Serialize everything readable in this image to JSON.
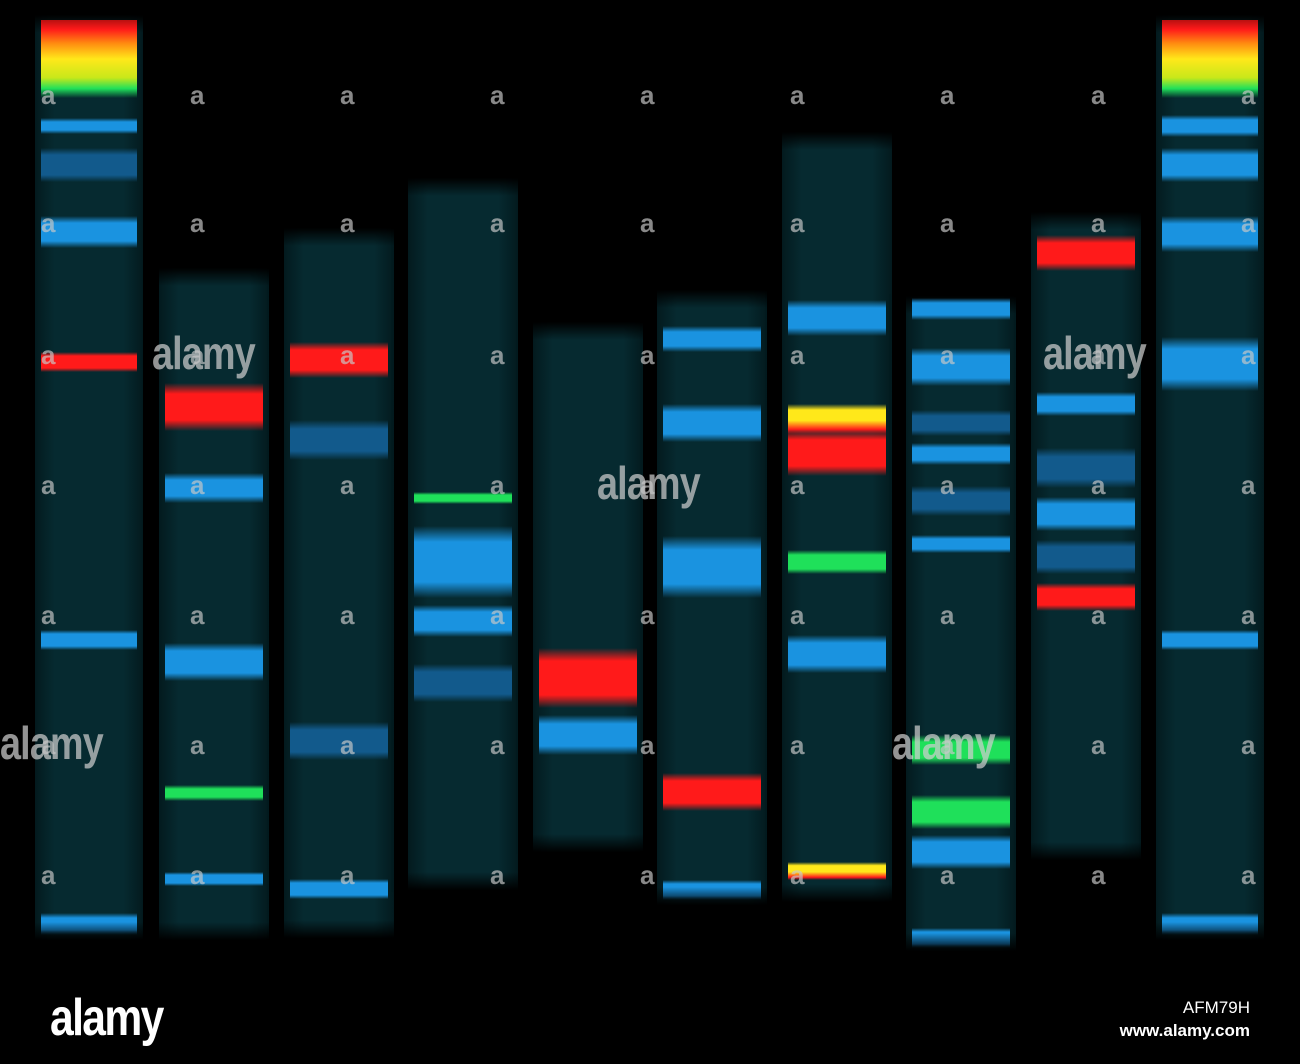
{
  "watermark": {
    "large": "alamy",
    "small": "a"
  },
  "footer": {
    "logo": "alamy",
    "image_id": "AFM79H",
    "url": "www.alamy.com"
  },
  "colors": {
    "background": "#000000",
    "lane": "#062a30",
    "blue": "#1a93e0",
    "blue_dim": "#125a8c",
    "red": "#ff1a1a",
    "green": "#1fe05a",
    "yellow": "#ffe81a"
  },
  "lanes": [
    {
      "name": "lane-1-ladder",
      "bands": [
        "ladder-top",
        "blue",
        "blue-dim",
        "blue",
        "red",
        "blue",
        "blue"
      ]
    },
    {
      "name": "lane-2",
      "bands": [
        "red",
        "blue",
        "blue",
        "green",
        "blue"
      ]
    },
    {
      "name": "lane-3",
      "bands": [
        "red",
        "blue-dim",
        "blue-dim",
        "blue"
      ]
    },
    {
      "name": "lane-4",
      "bands": [
        "green",
        "blue",
        "blue",
        "blue-dim"
      ]
    },
    {
      "name": "lane-5",
      "bands": [
        "red",
        "blue"
      ]
    },
    {
      "name": "lane-6",
      "bands": [
        "blue",
        "blue",
        "blue",
        "red",
        "blue"
      ]
    },
    {
      "name": "lane-7",
      "bands": [
        "blue",
        "yellow",
        "red",
        "green",
        "blue",
        "yellow"
      ]
    },
    {
      "name": "lane-8",
      "bands": [
        "blue",
        "blue",
        "blue-dim",
        "blue",
        "blue-dim",
        "blue",
        "green",
        "green",
        "blue",
        "blue"
      ]
    },
    {
      "name": "lane-9",
      "bands": [
        "red",
        "blue",
        "blue-dim",
        "blue",
        "blue-dim",
        "red"
      ]
    },
    {
      "name": "lane-10-ladder",
      "bands": [
        "ladder-top",
        "blue",
        "blue",
        "blue",
        "blue",
        "blue",
        "blue"
      ]
    }
  ]
}
